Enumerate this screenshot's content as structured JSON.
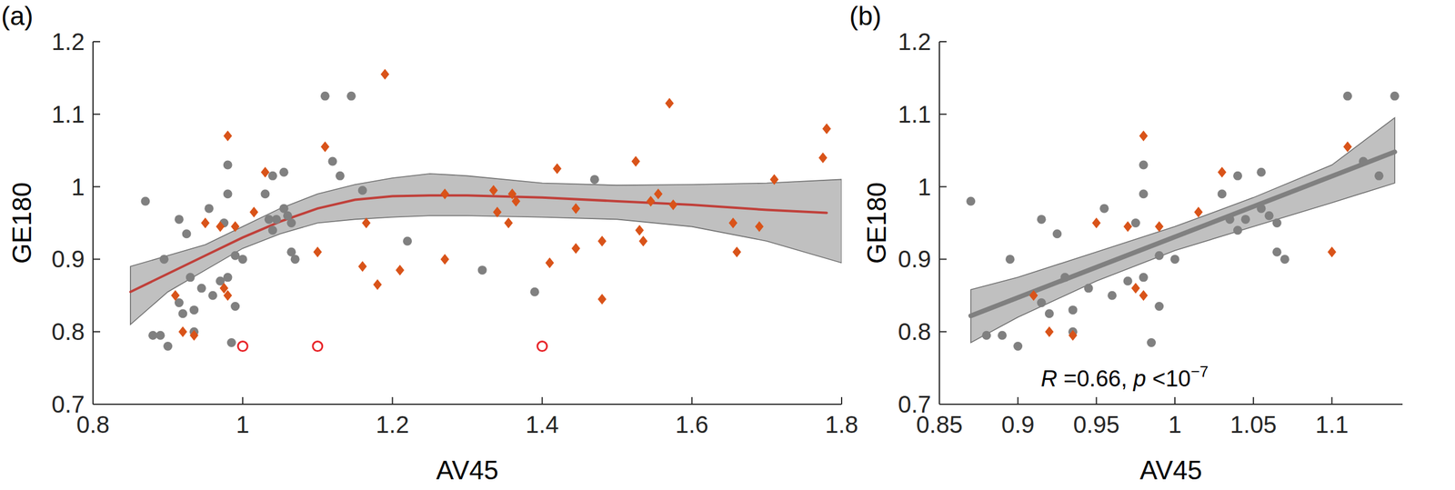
{
  "chart_data": [
    {
      "type": "scatter",
      "title": "(a)",
      "xlabel": "AV45",
      "ylabel": "GE180",
      "xlim": [
        0.8,
        1.8
      ],
      "xticks": [
        0.8,
        1,
        1.2,
        1.4,
        1.6,
        1.8
      ],
      "ylim": [
        0.7,
        1.2
      ],
      "yticks": [
        0.7,
        0.8,
        0.9,
        1,
        1.1,
        1.2
      ],
      "grid": false,
      "series": [
        {
          "type": "area",
          "color": "#c0c0c0",
          "x": [
            0.85,
            0.9,
            0.95,
            1.0,
            1.05,
            1.1,
            1.15,
            1.2,
            1.25,
            1.3,
            1.4,
            1.5,
            1.6,
            1.7,
            1.8
          ],
          "lower": [
            0.81,
            0.855,
            0.885,
            0.915,
            0.935,
            0.95,
            0.955,
            0.958,
            0.96,
            0.96,
            0.958,
            0.955,
            0.945,
            0.925,
            0.895
          ],
          "upper": [
            0.89,
            0.905,
            0.92,
            0.945,
            0.97,
            0.99,
            1.003,
            1.012,
            1.018,
            1.015,
            1.005,
            1.002,
            1.003,
            1.005,
            1.01
          ]
        },
        {
          "type": "line",
          "color": "#c0403a",
          "line_style": "solid",
          "x": [
            0.85,
            0.9,
            0.95,
            1.0,
            1.05,
            1.1,
            1.15,
            1.2,
            1.25,
            1.3,
            1.4,
            1.5,
            1.6,
            1.7,
            1.78
          ],
          "values": [
            0.855,
            0.88,
            0.905,
            0.93,
            0.952,
            0.97,
            0.982,
            0.987,
            0.988,
            0.988,
            0.985,
            0.98,
            0.975,
            0.968,
            0.964
          ]
        },
        {
          "type": "scatter",
          "color": "#808080",
          "marker": "circle",
          "x": [
            0.87,
            0.88,
            0.89,
            0.895,
            0.9,
            0.915,
            0.915,
            0.92,
            0.925,
            0.93,
            0.935,
            0.935,
            0.945,
            0.955,
            0.96,
            0.97,
            0.975,
            0.98,
            0.98,
            0.98,
            0.985,
            0.99,
            0.99,
            1.0,
            1.03,
            1.035,
            1.04,
            1.04,
            1.045,
            1.055,
            1.055,
            1.06,
            1.065,
            1.065,
            1.07,
            1.11,
            1.12,
            1.13,
            1.145,
            1.16,
            1.22,
            1.32,
            1.39,
            1.47
          ],
          "values": [
            0.98,
            0.795,
            0.795,
            0.9,
            0.78,
            0.955,
            0.84,
            0.825,
            0.935,
            0.875,
            0.8,
            0.83,
            0.86,
            0.97,
            0.85,
            0.87,
            0.95,
            0.875,
            1.03,
            0.99,
            0.785,
            0.905,
            0.835,
            0.9,
            0.99,
            0.955,
            0.94,
            1.015,
            0.955,
            1.02,
            0.97,
            0.96,
            0.95,
            0.91,
            0.9,
            1.125,
            1.035,
            1.015,
            1.125,
            0.995,
            0.925,
            0.885,
            0.855,
            1.01
          ]
        },
        {
          "type": "scatter",
          "color": "#d95319",
          "marker": "diamond",
          "x": [
            0.91,
            0.92,
            0.935,
            0.95,
            0.97,
            0.975,
            0.98,
            0.98,
            0.99,
            1.015,
            1.03,
            1.1,
            1.11,
            1.16,
            1.165,
            1.18,
            1.19,
            1.21,
            1.27,
            1.27,
            1.335,
            1.34,
            1.355,
            1.36,
            1.365,
            1.41,
            1.42,
            1.445,
            1.445,
            1.48,
            1.48,
            1.525,
            1.53,
            1.535,
            1.545,
            1.555,
            1.57,
            1.575,
            1.655,
            1.66,
            1.69,
            1.71,
            1.775,
            1.78
          ],
          "values": [
            0.85,
            0.8,
            0.795,
            0.95,
            0.945,
            0.86,
            0.85,
            1.07,
            0.945,
            0.965,
            1.02,
            0.91,
            1.055,
            0.89,
            0.95,
            0.865,
            1.155,
            0.885,
            0.99,
            0.9,
            0.995,
            0.965,
            0.95,
            0.99,
            0.98,
            0.895,
            1.025,
            0.915,
            0.97,
            0.925,
            0.845,
            1.035,
            0.94,
            0.925,
            0.98,
            0.99,
            1.115,
            0.975,
            0.95,
            0.91,
            0.945,
            1.01,
            1.04,
            1.08
          ]
        },
        {
          "type": "scatter",
          "color": "#e8262a",
          "marker": "open-circle",
          "x": [
            1.0,
            1.1,
            1.4
          ],
          "values": [
            0.78,
            0.78,
            0.78
          ]
        }
      ]
    },
    {
      "type": "scatter",
      "title": "(b)",
      "xlabel": "AV45",
      "ylabel": "GE180",
      "annotation": "R =0.66, p <10−7",
      "xlim": [
        0.85,
        1.145
      ],
      "xticks": [
        0.85,
        0.9,
        0.95,
        1,
        1.05,
        1.1
      ],
      "ylim": [
        0.7,
        1.2
      ],
      "yticks": [
        0.7,
        0.8,
        0.9,
        1,
        1.1,
        1.2
      ],
      "grid": false,
      "series": [
        {
          "type": "area",
          "color": "#c0c0c0",
          "x": [
            0.87,
            0.9,
            0.95,
            1.0,
            1.05,
            1.1,
            1.14
          ],
          "lower": [
            0.785,
            0.82,
            0.87,
            0.912,
            0.945,
            0.978,
            1.005
          ],
          "upper": [
            0.858,
            0.875,
            0.91,
            0.945,
            0.985,
            1.03,
            1.095
          ]
        },
        {
          "type": "line",
          "color": "#808080",
          "line_style": "solid",
          "x": [
            0.87,
            1.14
          ],
          "values": [
            0.822,
            1.048
          ]
        },
        {
          "type": "scatter",
          "color": "#808080",
          "marker": "circle",
          "x": [
            0.87,
            0.88,
            0.89,
            0.895,
            0.9,
            0.915,
            0.915,
            0.92,
            0.925,
            0.93,
            0.935,
            0.935,
            0.945,
            0.955,
            0.96,
            0.97,
            0.975,
            0.98,
            0.98,
            0.98,
            0.985,
            0.99,
            0.99,
            1.0,
            1.03,
            1.035,
            1.04,
            1.04,
            1.045,
            1.055,
            1.055,
            1.06,
            1.065,
            1.065,
            1.07,
            1.11,
            1.12,
            1.13,
            1.14
          ],
          "values": [
            0.98,
            0.795,
            0.795,
            0.9,
            0.78,
            0.955,
            0.84,
            0.825,
            0.935,
            0.875,
            0.8,
            0.83,
            0.86,
            0.97,
            0.85,
            0.87,
            0.95,
            0.875,
            1.03,
            0.99,
            0.785,
            0.905,
            0.835,
            0.9,
            0.99,
            0.955,
            0.94,
            1.015,
            0.955,
            1.02,
            0.97,
            0.96,
            0.95,
            0.91,
            0.9,
            1.125,
            1.035,
            1.015,
            1.125
          ]
        },
        {
          "type": "scatter",
          "color": "#d95319",
          "marker": "diamond",
          "x": [
            0.91,
            0.92,
            0.935,
            0.95,
            0.97,
            0.975,
            0.98,
            0.98,
            0.99,
            1.015,
            1.03,
            1.1,
            1.11
          ],
          "values": [
            0.85,
            0.8,
            0.795,
            0.95,
            0.945,
            0.86,
            0.85,
            1.07,
            0.945,
            0.965,
            1.02,
            0.91,
            1.055
          ]
        }
      ]
    }
  ]
}
